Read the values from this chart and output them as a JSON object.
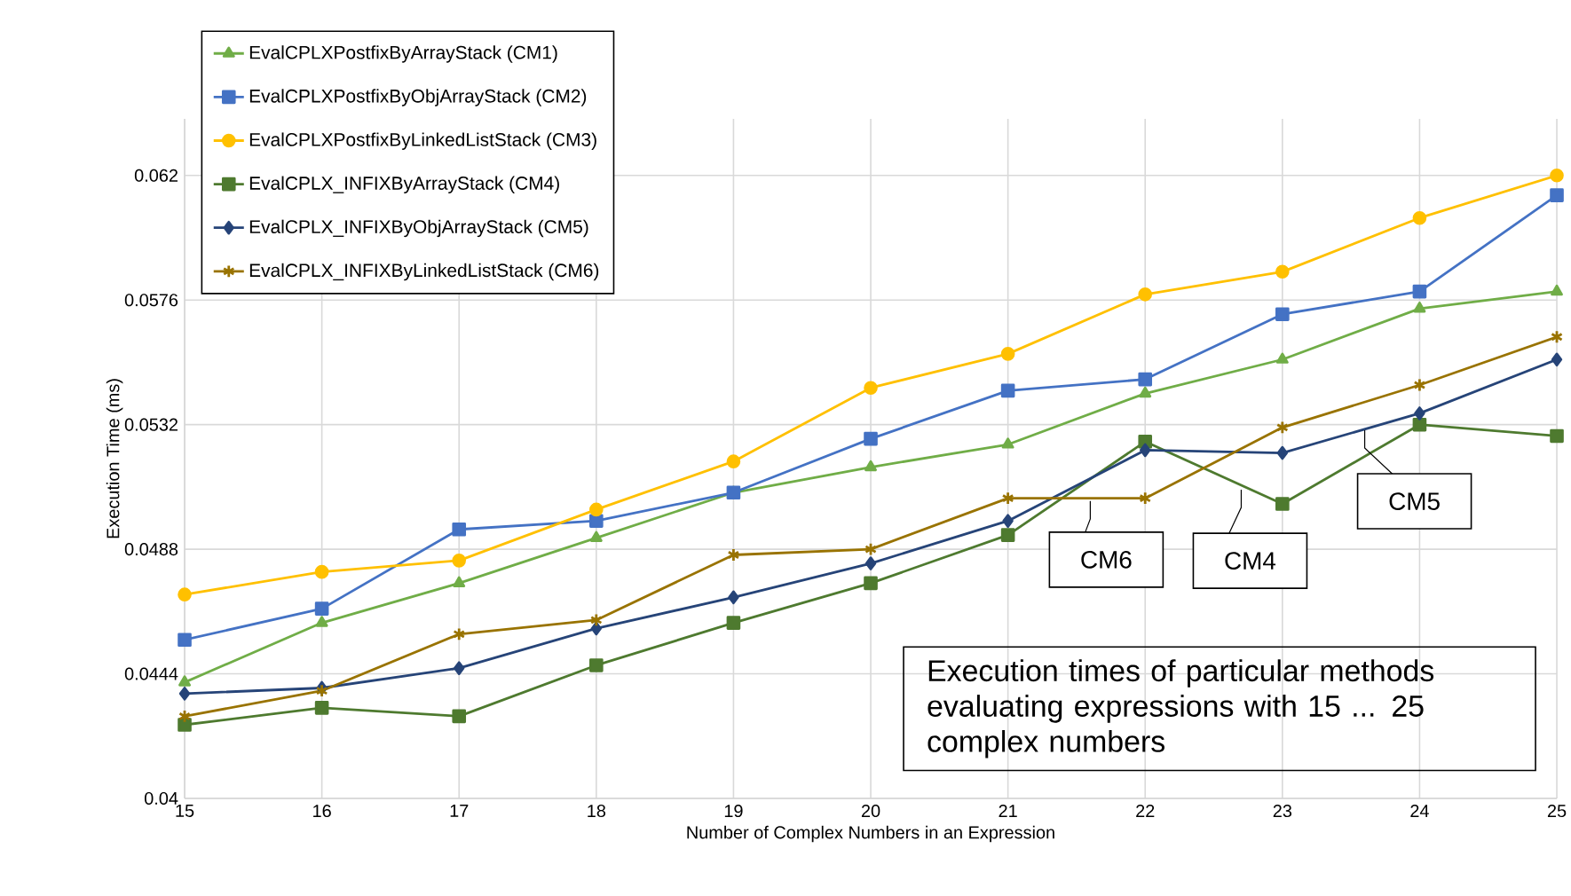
{
  "chart_data": {
    "type": "line",
    "xlabel": "Number of Complex Numbers in an Expression",
    "ylabel": "Execution Time (ms)",
    "x": [
      15,
      16,
      17,
      18,
      19,
      20,
      21,
      22,
      23,
      24,
      25
    ],
    "xlim": [
      15,
      25
    ],
    "xticks": [
      15,
      16,
      17,
      18,
      19,
      20,
      21,
      22,
      23,
      24,
      25
    ],
    "ylim": [
      0.04,
      0.064
    ],
    "yticks": [
      0.04,
      0.0444,
      0.0488,
      0.0532,
      0.0576,
      0.062
    ],
    "grid": true,
    "legend": "top left",
    "line_style": "solid",
    "series": [
      {
        "name": "EvalCPLXPostfixByArrayStack (CM1)",
        "color": "#70ad47",
        "marker": "triangle",
        "values": [
          0.0441,
          0.0462,
          0.0476,
          0.0492,
          0.0508,
          0.0517,
          0.0525,
          0.0543,
          0.0555,
          0.0573,
          0.0579
        ]
      },
      {
        "name": "EvalCPLXPostfixByObjArrayStack (CM2)",
        "color": "#4472c4",
        "marker": "square",
        "values": [
          0.0456,
          0.0467,
          0.0495,
          0.0498,
          0.0508,
          0.0527,
          0.0544,
          0.0548,
          0.0571,
          0.0579,
          0.0613
        ]
      },
      {
        "name": "EvalCPLXPostfixByLinkedListStack (CM3)",
        "color": "#ffc000",
        "marker": "circle",
        "values": [
          0.0472,
          0.048,
          0.0484,
          0.0502,
          0.0519,
          0.0545,
          0.0557,
          0.0578,
          0.0586,
          0.0605,
          0.062
        ]
      },
      {
        "name": "EvalCPLX_INFIXByArrayStack (CM4)",
        "color": "#4e7a2f",
        "marker": "square",
        "values": [
          0.0426,
          0.0432,
          0.0429,
          0.0447,
          0.0462,
          0.0476,
          0.0493,
          0.0526,
          0.0504,
          0.0532,
          0.0528
        ]
      },
      {
        "name": "EvalCPLX_INFIXByObjArrayStack (CM5)",
        "color": "#264478",
        "marker": "diamond",
        "values": [
          0.0437,
          0.0439,
          0.0446,
          0.046,
          0.0471,
          0.0483,
          0.0498,
          0.0523,
          0.0522,
          0.0536,
          0.0555
        ]
      },
      {
        "name": "EvalCPLX_INFIXByLinkedListStack (CM6)",
        "color": "#997300",
        "marker": "cross",
        "values": [
          0.0429,
          0.0438,
          0.0458,
          0.0463,
          0.0486,
          0.0488,
          0.0506,
          0.0506,
          0.0531,
          0.0546,
          0.0563
        ]
      }
    ],
    "annotations": [
      {
        "text": "CM6",
        "x": 21.6,
        "y": 0.0505
      },
      {
        "text": "CM4",
        "x": 22.7,
        "y": 0.0509
      },
      {
        "text": "CM5",
        "x": 23.6,
        "y": 0.053
      },
      "Execution times of particular methods evaluating expressions with 15 ... 25 complex numbers"
    ]
  }
}
